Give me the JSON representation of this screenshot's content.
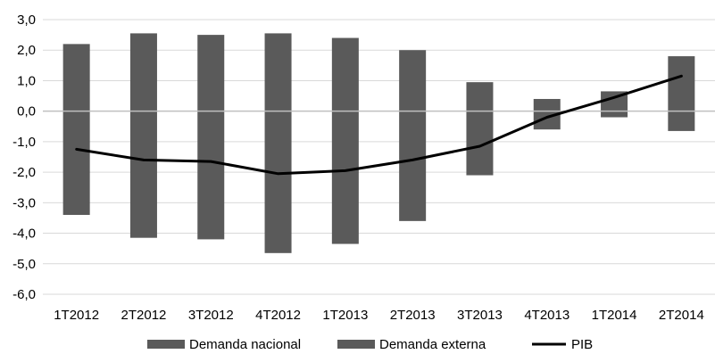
{
  "chart_data": {
    "type": "bar",
    "categories": [
      "1T2012",
      "2T2012",
      "3T2012",
      "4T2012",
      "1T2013",
      "2T2013",
      "3T2013",
      "4T2013",
      "1T2014",
      "2T2014"
    ],
    "series": [
      {
        "name": "Demanda nacional",
        "kind": "bar",
        "values": [
          -3.4,
          -4.15,
          -4.2,
          -4.65,
          -4.35,
          -3.6,
          -2.1,
          -0.6,
          -0.2,
          -0.65
        ]
      },
      {
        "name": "Demanda externa",
        "kind": "bar",
        "values": [
          2.2,
          2.55,
          2.5,
          2.55,
          2.4,
          2.0,
          0.95,
          0.4,
          0.65,
          1.8
        ]
      },
      {
        "name": "PIB",
        "kind": "line",
        "values": [
          -1.25,
          -1.6,
          -1.65,
          -2.05,
          -1.95,
          -1.6,
          -1.15,
          -0.2,
          0.45,
          1.15
        ]
      }
    ],
    "yticks": [
      "3,0",
      "2,0",
      "1,0",
      "0,0",
      "-1,0",
      "-2,0",
      "-3,0",
      "-4,0",
      "-5,0",
      "-6,0"
    ],
    "ylim": [
      -6,
      3
    ],
    "grid": true,
    "legend_position": "bottom",
    "colors": {
      "bar": "#5a5a5a",
      "line": "#000000",
      "grid": "#d9d9d9",
      "axis": "#bfbfbf"
    }
  }
}
